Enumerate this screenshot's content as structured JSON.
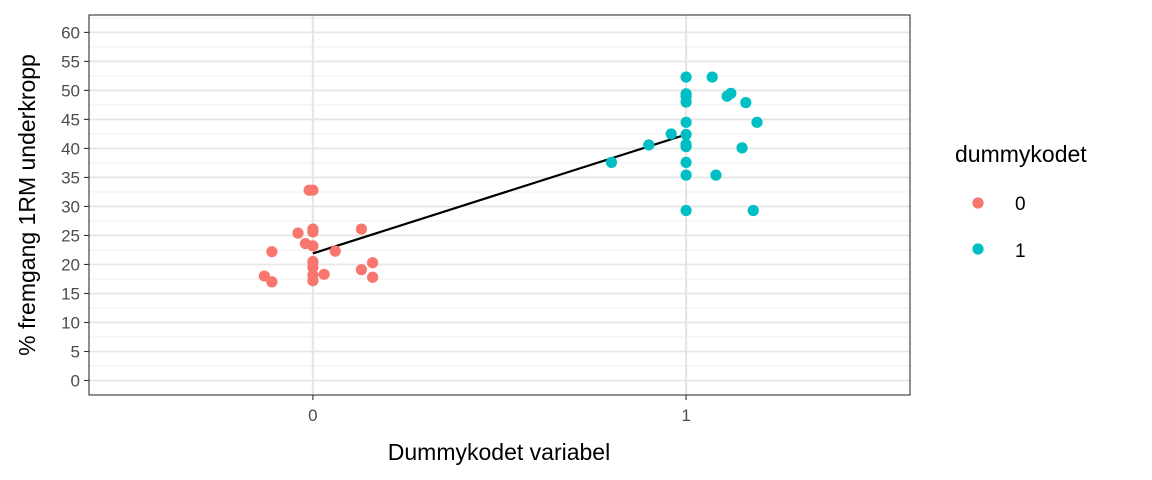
{
  "chart_data": {
    "type": "scatter",
    "xlabel": "Dummykodet variabel",
    "ylabel": "% fremgang 1RM underkropp",
    "xlim": [
      -0.6,
      1.6
    ],
    "ylim": [
      -2.5,
      63
    ],
    "x_ticks": [
      "0",
      "1"
    ],
    "y_ticks": [
      "0",
      "5",
      "10",
      "15",
      "20",
      "25",
      "30",
      "35",
      "40",
      "45",
      "50",
      "55",
      "60"
    ],
    "grid": true,
    "legend": {
      "title": "dummykodet",
      "position": "right",
      "entries": [
        {
          "label": "0",
          "color": "#f8766d"
        },
        {
          "label": "1",
          "color": "#00bfc4"
        }
      ]
    },
    "series": [
      {
        "name": "0",
        "color": "#f8766d",
        "points": [
          {
            "x": -0.01,
            "y": 32.8
          },
          {
            "x": 0.0,
            "y": 32.8
          },
          {
            "x": 0.0,
            "y": 26.1
          },
          {
            "x": 0.0,
            "y": 25.6
          },
          {
            "x": 0.13,
            "y": 26.1
          },
          {
            "x": -0.04,
            "y": 25.4
          },
          {
            "x": -0.02,
            "y": 23.6
          },
          {
            "x": 0.0,
            "y": 23.2
          },
          {
            "x": 0.06,
            "y": 22.3
          },
          {
            "x": -0.11,
            "y": 22.2
          },
          {
            "x": 0.0,
            "y": 20.5
          },
          {
            "x": 0.0,
            "y": 19.5
          },
          {
            "x": 0.16,
            "y": 20.3
          },
          {
            "x": 0.13,
            "y": 19.1
          },
          {
            "x": 0.03,
            "y": 18.3
          },
          {
            "x": 0.0,
            "y": 18.2
          },
          {
            "x": -0.13,
            "y": 18.0
          },
          {
            "x": 0.16,
            "y": 17.8
          },
          {
            "x": -0.11,
            "y": 17.0
          },
          {
            "x": 0.0,
            "y": 17.2
          }
        ]
      },
      {
        "name": "1",
        "color": "#00bfc4",
        "points": [
          {
            "x": 1.0,
            "y": 52.3
          },
          {
            "x": 1.07,
            "y": 52.3
          },
          {
            "x": 1.0,
            "y": 49.4
          },
          {
            "x": 1.0,
            "y": 49.0
          },
          {
            "x": 1.12,
            "y": 49.5
          },
          {
            "x": 1.11,
            "y": 49.0
          },
          {
            "x": 1.0,
            "y": 48.0
          },
          {
            "x": 1.16,
            "y": 47.9
          },
          {
            "x": 1.0,
            "y": 44.5
          },
          {
            "x": 1.19,
            "y": 44.5
          },
          {
            "x": 0.96,
            "y": 42.5
          },
          {
            "x": 1.0,
            "y": 42.4
          },
          {
            "x": 0.9,
            "y": 40.6
          },
          {
            "x": 1.0,
            "y": 40.7
          },
          {
            "x": 1.0,
            "y": 40.3
          },
          {
            "x": 1.15,
            "y": 40.1
          },
          {
            "x": 0.8,
            "y": 37.6
          },
          {
            "x": 1.0,
            "y": 37.6
          },
          {
            "x": 1.0,
            "y": 35.4
          },
          {
            "x": 1.08,
            "y": 35.4
          },
          {
            "x": 1.0,
            "y": 29.3
          },
          {
            "x": 1.18,
            "y": 29.3
          }
        ]
      }
    ],
    "regression_line": {
      "x": [
        0,
        1
      ],
      "y": [
        21.9,
        42.4
      ],
      "color": "#000000"
    }
  }
}
